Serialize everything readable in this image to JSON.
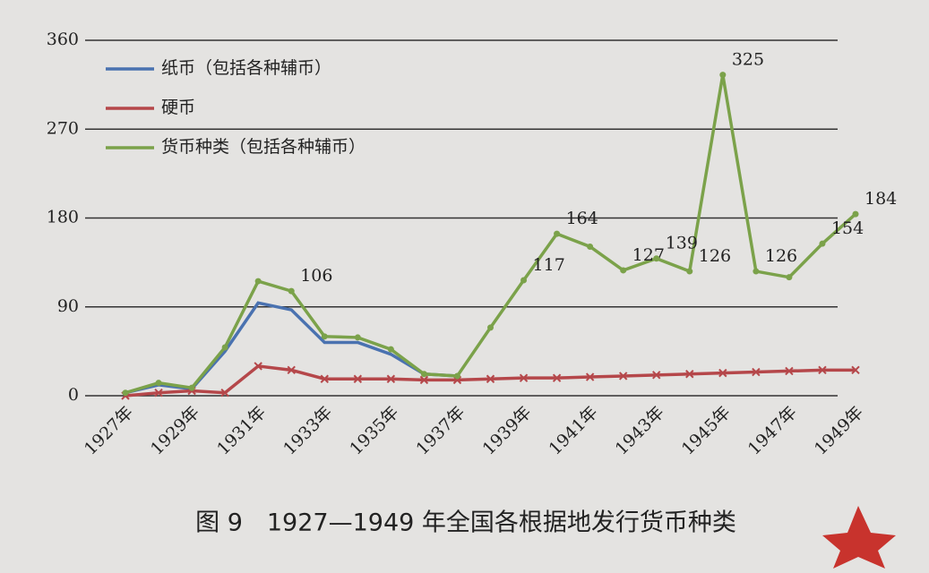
{
  "chart_data": {
    "type": "line",
    "caption": "图 9　1927—1949 年全国各根据地发行货币种类",
    "categories": [
      "1927年",
      null,
      "1929年",
      null,
      "1931年",
      null,
      "1933年",
      null,
      "1935年",
      null,
      "1937年",
      null,
      "1939年",
      null,
      "1941年",
      null,
      "1943年",
      null,
      "1945年",
      null,
      "1947年",
      null,
      "1949年"
    ],
    "ylim": [
      0,
      360
    ],
    "yticks": [
      0,
      90,
      180,
      270,
      360
    ],
    "grid": true,
    "legend": "top-left",
    "series": [
      {
        "name": "纸币（包括各种辅币）",
        "color": "#4a72b0",
        "marker": "none",
        "values": [
          3,
          11,
          7,
          45,
          94,
          87,
          54,
          54,
          42,
          22,
          20,
          null,
          null,
          null,
          null,
          null,
          null,
          null,
          null,
          null,
          null,
          null,
          null
        ]
      },
      {
        "name": "硬币",
        "color": "#b5474a",
        "marker": "x",
        "values": [
          0,
          3,
          5,
          3,
          30,
          26,
          17,
          17,
          17,
          16,
          16,
          17,
          18,
          18,
          19,
          20,
          21,
          22,
          23,
          24,
          25,
          26,
          26
        ]
      },
      {
        "name": "货币种类（包括各种辅币）",
        "color": "#7ba24a",
        "marker": "dot",
        "values": [
          3,
          13,
          8,
          49,
          116,
          106,
          60,
          59,
          47,
          22,
          20,
          69,
          117,
          164,
          151,
          127,
          139,
          126,
          325,
          126,
          120,
          154,
          184
        ],
        "value_labels": [
          null,
          null,
          null,
          null,
          null,
          "106",
          null,
          null,
          null,
          null,
          null,
          null,
          "117",
          "164",
          null,
          "127",
          "139",
          "126",
          "325",
          "126",
          null,
          "154",
          "184"
        ]
      }
    ]
  }
}
